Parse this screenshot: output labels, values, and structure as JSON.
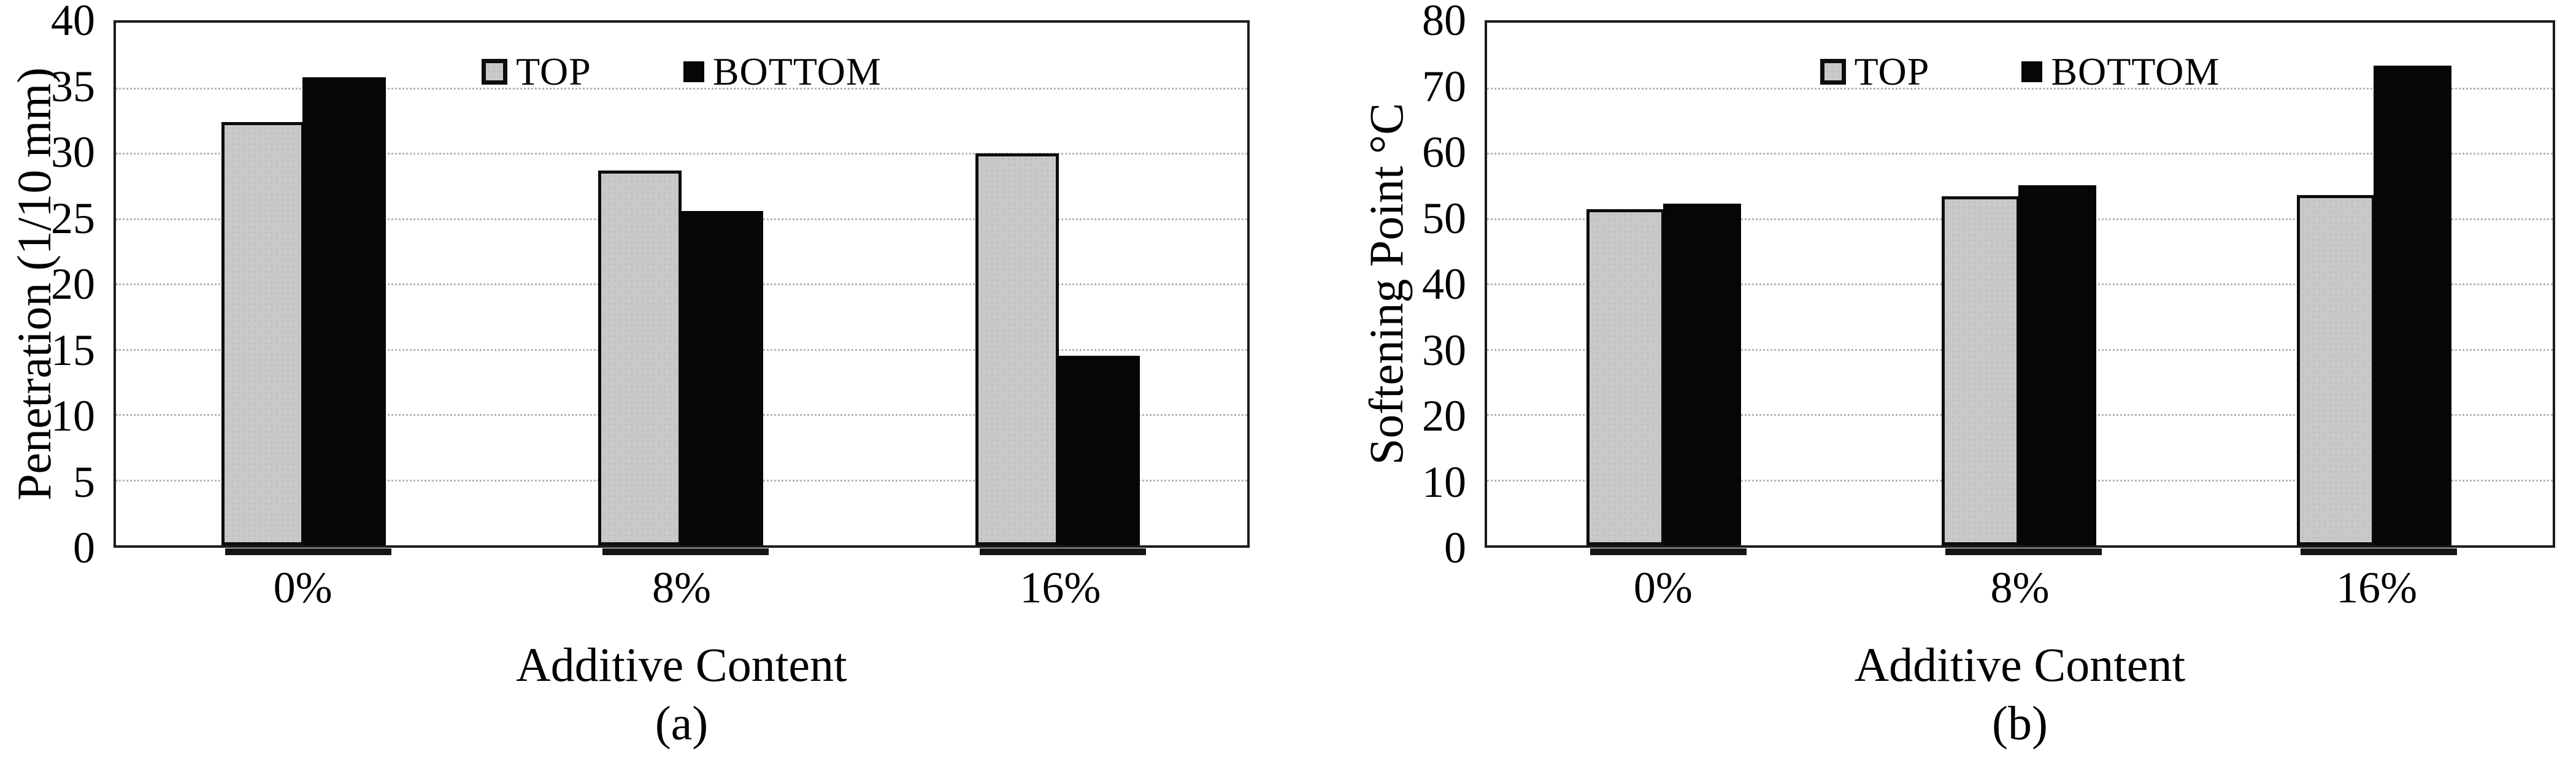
{
  "figure": {
    "background_color": "#ffffff",
    "text_color": "#000000",
    "plot_border_color": "#1c1c1c",
    "gridline_color": "#b4b4b4"
  },
  "chart_data": [
    {
      "type": "bar",
      "title": "(a)",
      "xlabel": "Additive Content",
      "ylabel": "Penetration (1/10 mm)",
      "categories": [
        "0%",
        "8%",
        "16%"
      ],
      "series": [
        {
          "name": "TOP",
          "color": "#c9c9c9",
          "values": [
            32.4,
            28.7,
            30.0
          ]
        },
        {
          "name": "BOTTOM",
          "color": "#060606",
          "values": [
            35.8,
            25.6,
            14.5
          ]
        }
      ],
      "ylim": [
        0,
        40
      ],
      "yticks": [
        0,
        5,
        10,
        15,
        20,
        25,
        30,
        35,
        40
      ],
      "grid": true,
      "legend_position": "top-center-inside"
    },
    {
      "type": "bar",
      "title": "(b)",
      "xlabel": "Additive Content",
      "ylabel": "Softening Point °C",
      "categories": [
        "0%",
        "8%",
        "16%"
      ],
      "series": [
        {
          "name": "TOP",
          "color": "#c9c9c9",
          "values": [
            51.5,
            53.4,
            53.6
          ]
        },
        {
          "name": "BOTTOM",
          "color": "#060606",
          "values": [
            52.3,
            55.1,
            73.4
          ]
        }
      ],
      "ylim": [
        0,
        80
      ],
      "yticks": [
        0,
        10,
        20,
        30,
        40,
        50,
        60,
        70,
        80
      ],
      "grid": true,
      "legend_position": "top-center-inside"
    }
  ]
}
